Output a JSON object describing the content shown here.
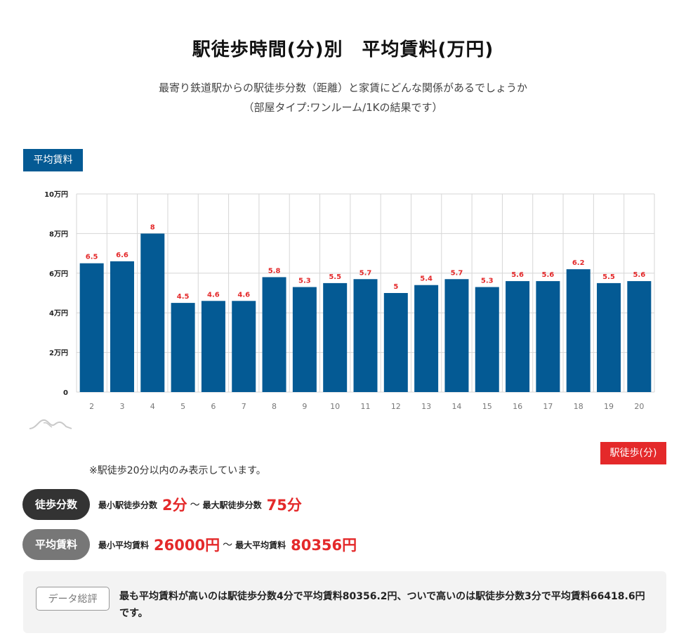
{
  "header": {
    "title": "駅徒歩時間(分)別　平均賃料(万円)",
    "subtitle_line1": "最寄り鉄道駅からの駅徒歩分数（距離）と家賃にどんな関係があるでしょうか",
    "subtitle_line2": "（部屋タイプ:ワンルーム/1Kの結果です）"
  },
  "chart_data": {
    "type": "bar",
    "title": "駅徒歩時間(分)別　平均賃料(万円)",
    "ylabel": "平均賃料",
    "xlabel": "駅徒歩(分)",
    "categories": [
      "2",
      "3",
      "4",
      "5",
      "6",
      "7",
      "8",
      "9",
      "10",
      "11",
      "12",
      "13",
      "14",
      "15",
      "16",
      "17",
      "18",
      "19",
      "20"
    ],
    "values": [
      6.5,
      6.6,
      8,
      4.5,
      4.6,
      4.6,
      5.8,
      5.3,
      5.5,
      5.7,
      5,
      5.4,
      5.7,
      5.3,
      5.6,
      5.6,
      6.2,
      5.5,
      5.6
    ],
    "data_labels": [
      "6.5",
      "6.6",
      "8",
      "4.5",
      "4.6",
      "4.6",
      "5.8",
      "5.3",
      "5.5",
      "5.7",
      "5",
      "5.4",
      "5.7",
      "5.3",
      "5.6",
      "5.6",
      "6.2",
      "5.5",
      "5.6"
    ],
    "ylim": [
      0,
      10
    ],
    "yticks": [
      0,
      2,
      4,
      6,
      8,
      10
    ],
    "ytick_labels": [
      "0",
      "2万円",
      "4万円",
      "6万円",
      "8万円",
      "10万円"
    ],
    "grid": true,
    "colors": {
      "bar": "#045a94",
      "data_label": "#e4292a",
      "grid": "#d6d6d6"
    }
  },
  "note": "※駅徒歩20分以内のみ表示しています。",
  "walk_stats": {
    "pill": "徒歩分数",
    "min_label": "最小駅徒歩分数",
    "min_value": "2分",
    "separator": "～",
    "max_label": "最大駅徒歩分数",
    "max_value": "75分"
  },
  "rent_stats": {
    "pill": "平均賃料",
    "min_label": "最小平均賃料",
    "min_value": "26000円",
    "separator": "～",
    "max_label": "最大平均賃料",
    "max_value": "80356円"
  },
  "summary": {
    "label": "データ総評",
    "text": "最も平均賃料が高いのは駅徒歩分数4分で平均賃料80356.2円、ついで高いのは駅徒歩分数3分で平均賃料66418.6円です。"
  },
  "icons": {
    "logo": "mountain-logo-icon"
  }
}
